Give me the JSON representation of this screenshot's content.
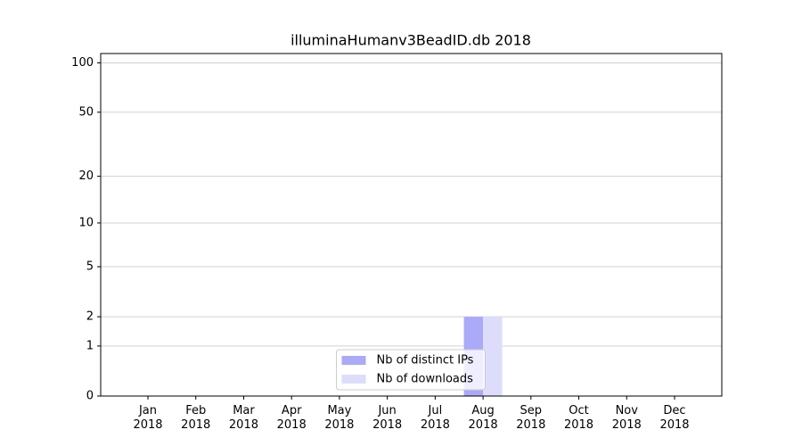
{
  "chart_data": {
    "type": "bar",
    "title": "illuminaHumanv3BeadID.db 2018",
    "categories": [
      "Jan 2018",
      "Feb 2018",
      "Mar 2018",
      "Apr 2018",
      "May 2018",
      "Jun 2018",
      "Jul 2018",
      "Aug 2018",
      "Sep 2018",
      "Oct 2018",
      "Nov 2018",
      "Dec 2018"
    ],
    "series": [
      {
        "name": "Nb of distinct IPs",
        "color": "#aaaaf8",
        "values": [
          0,
          0,
          0,
          0,
          0,
          0,
          0,
          2,
          0,
          0,
          0,
          0
        ]
      },
      {
        "name": "Nb of downloads",
        "color": "#ddddfb",
        "values": [
          0,
          0,
          0,
          0,
          0,
          0,
          0,
          2,
          0,
          0,
          0,
          0
        ]
      }
    ],
    "yscale": "log1p",
    "ylim": [
      0,
      114
    ],
    "yticks": [
      0,
      1,
      2,
      5,
      10,
      20,
      50,
      100
    ],
    "grid": true,
    "legend": "lower center"
  }
}
